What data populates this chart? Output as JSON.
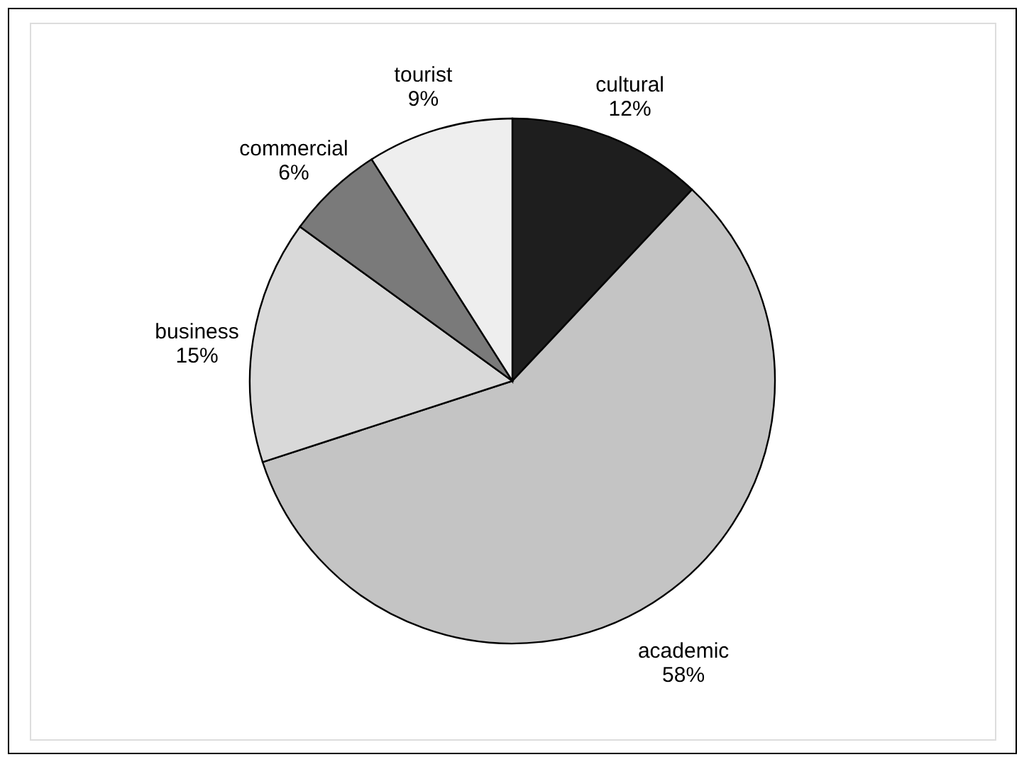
{
  "chart_data": {
    "type": "pie",
    "categories": [
      "cultural",
      "academic",
      "business",
      "commercial",
      "tourist"
    ],
    "values": [
      12,
      58,
      15,
      6,
      9
    ],
    "value_labels": [
      "12%",
      "58%",
      "15%",
      "6%",
      "9%"
    ],
    "colors": [
      "#1e1e1e",
      "#c4c4c4",
      "#d9d9d9",
      "#7a7a7a",
      "#eeeeee"
    ],
    "legend": false
  }
}
